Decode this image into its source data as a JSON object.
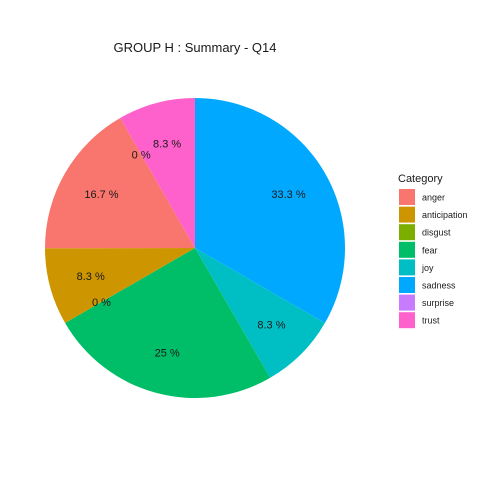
{
  "chart_data": {
    "type": "pie",
    "title": "GROUP H : Summary - Q14",
    "legend_title": "Category",
    "legend_position": "right",
    "categories": [
      "anger",
      "anticipation",
      "disgust",
      "fear",
      "joy",
      "sadness",
      "surprise",
      "trust"
    ],
    "values": [
      16.7,
      8.3,
      0,
      25,
      8.3,
      33.3,
      0,
      8.3
    ],
    "labels": [
      "16.7 %",
      "8.3 %",
      "0 %",
      "25 %",
      "8.3 %",
      "33.3 %",
      "0 %",
      "8.3 %"
    ],
    "colors": [
      "#F8766D",
      "#CD9600",
      "#7CAE00",
      "#00BE67",
      "#00BFC4",
      "#00A9FF",
      "#C77CFF",
      "#FF61CC"
    ]
  }
}
